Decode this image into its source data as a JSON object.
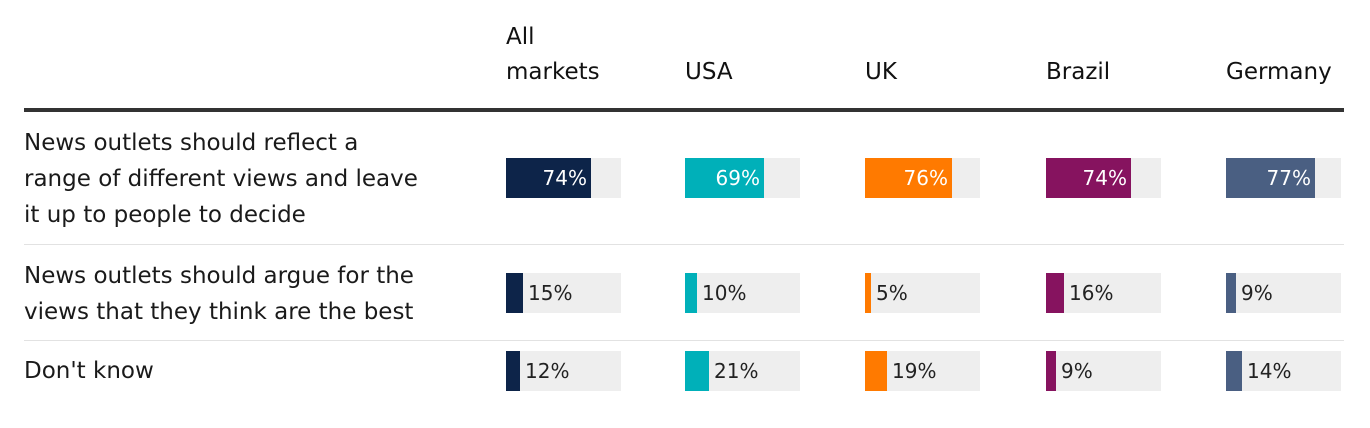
{
  "chart_data": {
    "type": "bar",
    "markets": [
      {
        "header_lines": [
          "All",
          "markets"
        ],
        "color": "#0d2449"
      },
      {
        "header_lines": [
          "USA"
        ],
        "color": "#00b0b9"
      },
      {
        "header_lines": [
          "UK"
        ],
        "color": "#ff7a00"
      },
      {
        "header_lines": [
          "Brazil"
        ],
        "color": "#86135f"
      },
      {
        "header_lines": [
          "Germany"
        ],
        "color": "#4a5f82"
      }
    ],
    "rows": [
      {
        "label_lines": [
          "News outlets should reflect a",
          "range of different views and leave",
          "it up to people to decide"
        ],
        "values": [
          74,
          69,
          76,
          74,
          77
        ],
        "value_labels": [
          "74%",
          "69%",
          "76%",
          "74%",
          "77%"
        ]
      },
      {
        "label_lines": [
          "News outlets should argue for the",
          "views that they think are the best"
        ],
        "values": [
          15,
          10,
          5,
          16,
          9
        ],
        "value_labels": [
          "15%",
          "10%",
          "5%",
          "16%",
          "9%"
        ]
      },
      {
        "label_lines": [
          "Don't know"
        ],
        "values": [
          12,
          21,
          19,
          9,
          14
        ],
        "value_labels": [
          "12%",
          "21%",
          "19%",
          "9%",
          "14%"
        ]
      }
    ],
    "value_max": 100,
    "title": "",
    "xlabel": "",
    "ylabel": ""
  }
}
